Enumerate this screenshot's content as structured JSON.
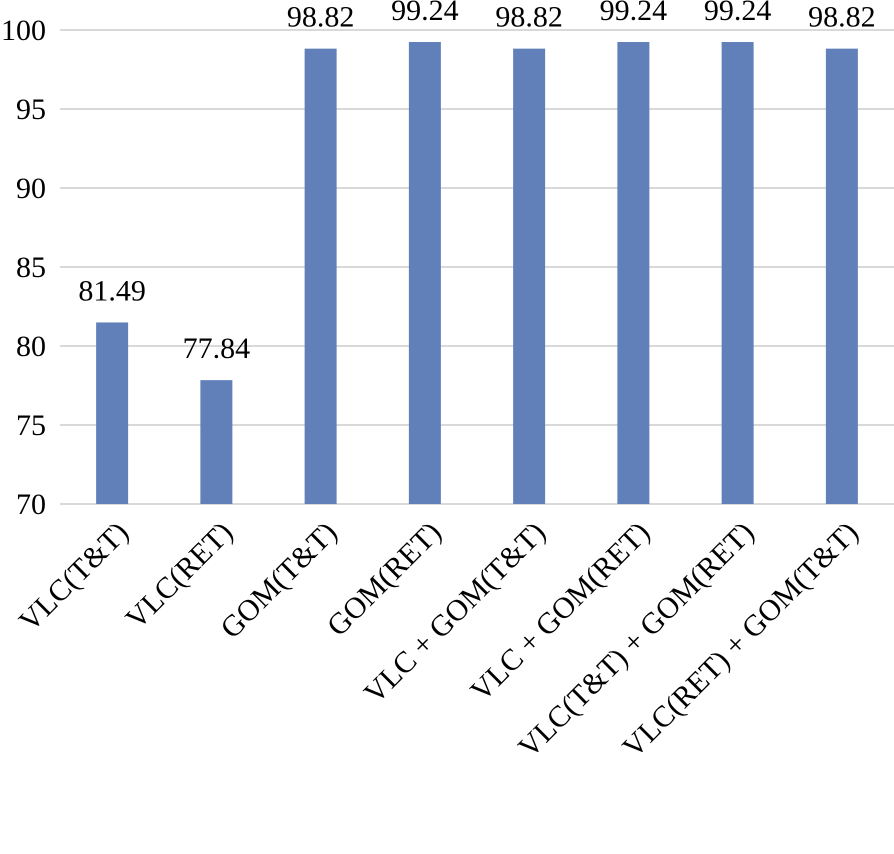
{
  "chart_data": {
    "type": "bar",
    "title": "",
    "xlabel": "",
    "ylabel": "",
    "categories": [
      "VLC(T&T)",
      "VLC(RET)",
      "GOM(T&T)",
      "GOM(RET)",
      "VLC + GOM(T&T)",
      "VLC + GOM(RET)",
      "VLC(T&T) + GOM(RET)",
      "VLC(RET) + GOM(T&T)"
    ],
    "values": [
      81.49,
      77.84,
      98.82,
      99.24,
      98.82,
      99.24,
      99.24,
      98.82
    ],
    "ylim": [
      70,
      100
    ],
    "yticks": [
      70,
      75,
      80,
      85,
      90,
      95,
      100
    ],
    "grid": true,
    "legend": "none",
    "bar_color": "#6180b9",
    "data_labels": true
  }
}
